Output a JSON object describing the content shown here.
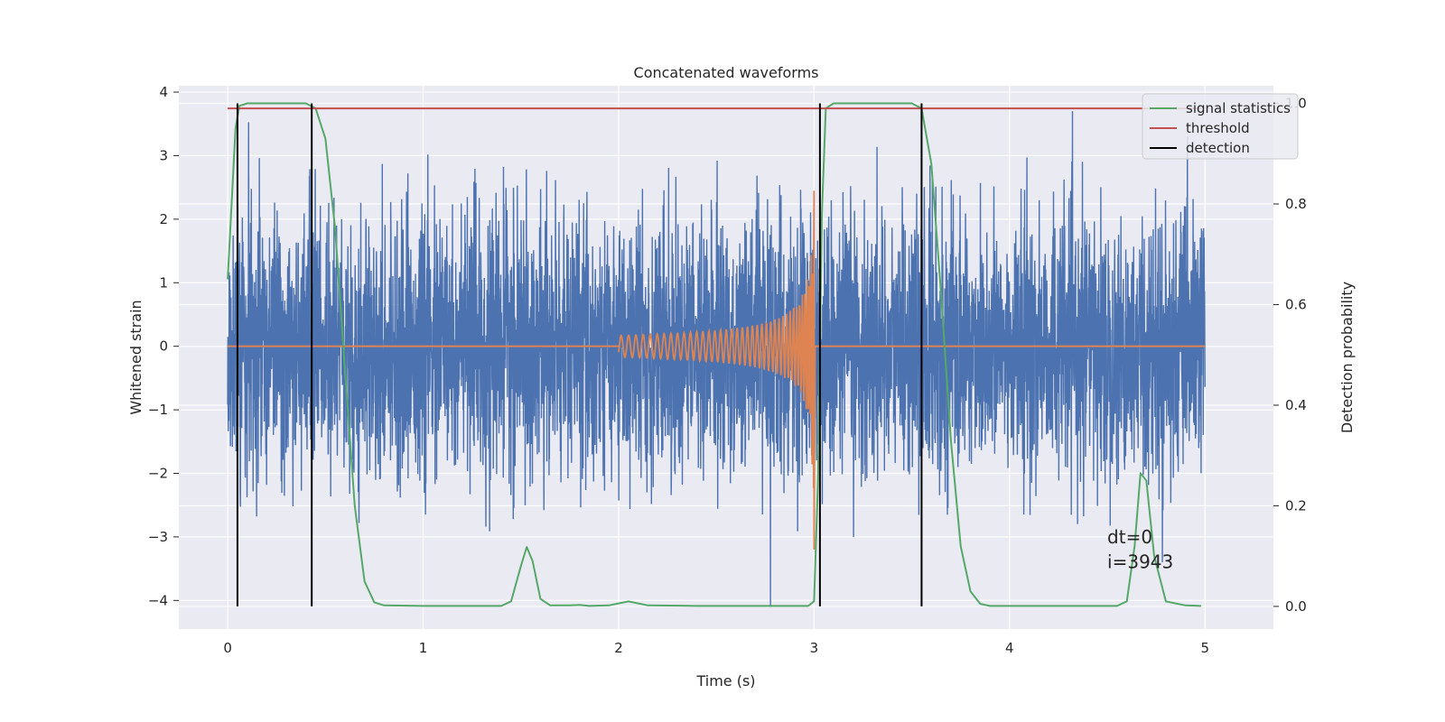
{
  "chart_data": {
    "type": "line",
    "title": "Concatenated waveforms",
    "xlabel": "Time (s)",
    "ylabel": "Whitened strain",
    "y2label": "Detection probability",
    "xlim": [
      -0.25,
      5.35
    ],
    "ylim": [
      -4.45,
      4.1
    ],
    "y2lim": [
      -0.045,
      1.035
    ],
    "x_ticks": [
      0,
      1,
      2,
      3,
      4,
      5
    ],
    "y_ticks": [
      -4,
      -3,
      -2,
      -1,
      0,
      1,
      2,
      3,
      4
    ],
    "y2_ticks": [
      0.0,
      0.2,
      0.4,
      0.6,
      0.8,
      1.0
    ],
    "grid": true,
    "legend_position": "top-right",
    "series": [
      {
        "name": "signal statistics",
        "axis": "right",
        "color": "#55a868",
        "points": [
          [
            0.0,
            0.65
          ],
          [
            0.02,
            0.8
          ],
          [
            0.04,
            0.95
          ],
          [
            0.06,
            0.995
          ],
          [
            0.1,
            1.0
          ],
          [
            0.4,
            1.0
          ],
          [
            0.45,
            0.99
          ],
          [
            0.5,
            0.93
          ],
          [
            0.55,
            0.75
          ],
          [
            0.6,
            0.47
          ],
          [
            0.65,
            0.2
          ],
          [
            0.7,
            0.05
          ],
          [
            0.75,
            0.008
          ],
          [
            0.8,
            0.002
          ],
          [
            1.0,
            0.001
          ],
          [
            1.4,
            0.001
          ],
          [
            1.45,
            0.01
          ],
          [
            1.5,
            0.08
          ],
          [
            1.53,
            0.118
          ],
          [
            1.56,
            0.09
          ],
          [
            1.6,
            0.015
          ],
          [
            1.65,
            0.002
          ],
          [
            1.75,
            0.002
          ],
          [
            1.8,
            0.003
          ],
          [
            1.85,
            0.001
          ],
          [
            1.95,
            0.002
          ],
          [
            2.05,
            0.01
          ],
          [
            2.15,
            0.002
          ],
          [
            2.4,
            0.001
          ],
          [
            2.97,
            0.001
          ],
          [
            3.0,
            0.01
          ],
          [
            3.02,
            0.25
          ],
          [
            3.04,
            0.78
          ],
          [
            3.06,
            0.99
          ],
          [
            3.1,
            1.0
          ],
          [
            3.5,
            1.0
          ],
          [
            3.55,
            0.99
          ],
          [
            3.6,
            0.88
          ],
          [
            3.65,
            0.62
          ],
          [
            3.7,
            0.33
          ],
          [
            3.75,
            0.12
          ],
          [
            3.8,
            0.03
          ],
          [
            3.85,
            0.005
          ],
          [
            3.9,
            0.001
          ],
          [
            4.55,
            0.001
          ],
          [
            4.6,
            0.01
          ],
          [
            4.64,
            0.12
          ],
          [
            4.67,
            0.265
          ],
          [
            4.7,
            0.25
          ],
          [
            4.74,
            0.1
          ],
          [
            4.8,
            0.01
          ],
          [
            4.9,
            0.002
          ],
          [
            4.98,
            0.001
          ]
        ]
      },
      {
        "name": "threshold",
        "axis": "right",
        "color": "#c44e52",
        "points": [
          [
            0.0,
            0.99
          ],
          [
            4.98,
            0.99
          ]
        ]
      },
      {
        "name": "detection",
        "axis": "right",
        "color": "#000000",
        "vlines_x": [
          0.05,
          0.43,
          3.03,
          3.55
        ],
        "vline_range": [
          0.0,
          1.0
        ]
      }
    ],
    "noise_series": {
      "axis": "left",
      "color": "#4c72b0",
      "x_range": [
        0.0,
        5.0
      ],
      "typical_amplitude": 1.0,
      "max": 3.7,
      "min": -4.1
    },
    "chirp_series": {
      "axis": "left",
      "color": "#dd8452",
      "x_range": [
        0.0,
        5.0
      ],
      "chirp_start": 2.0,
      "merger": 3.0,
      "peak_amplitude": 2.45,
      "min_value": -3.2
    },
    "annotations": [
      "dt=0",
      "i=3943"
    ]
  }
}
